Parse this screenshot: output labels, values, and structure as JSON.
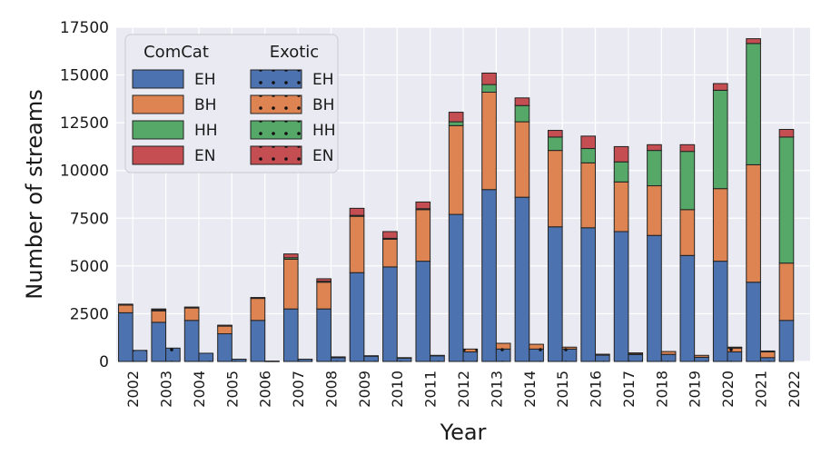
{
  "chart_data": {
    "type": "bar",
    "title": "",
    "xlabel": "Year",
    "ylabel": "Number of streams",
    "ylim": [
      0,
      17500
    ],
    "yticks": [
      0,
      2500,
      5000,
      7500,
      10000,
      12500,
      15000,
      17500
    ],
    "ytick_labels": [
      "0",
      "2500",
      "5000",
      "7500",
      "10000",
      "12500",
      "15000",
      "17500"
    ],
    "grid": true,
    "stacked": true,
    "categories": [
      "2002",
      "2003",
      "2004",
      "2005",
      "2006",
      "2007",
      "2008",
      "2009",
      "2010",
      "2011",
      "2012",
      "2013",
      "2014",
      "2015",
      "2016",
      "2017",
      "2018",
      "2019",
      "2020",
      "2021",
      "2022"
    ],
    "groups": [
      {
        "name": "ComCat",
        "series": [
          {
            "name": "EH",
            "color": "#4c72b0",
            "values": [
              2550,
              2050,
              2150,
              1450,
              2150,
              2750,
              2750,
              4650,
              4950,
              5250,
              7700,
              9000,
              8600,
              7050,
              7000,
              6800,
              6600,
              5550,
              5250,
              4150,
              2150
            ]
          },
          {
            "name": "BH",
            "color": "#dd8452",
            "values": [
              400,
              600,
              650,
              400,
              1150,
              2600,
              1400,
              2950,
              1450,
              2700,
              4650,
              5100,
              3950,
              4000,
              3400,
              2600,
              2600,
              2400,
              3800,
              6150,
              3000
            ]
          },
          {
            "name": "HH",
            "color": "#55a868",
            "values": [
              0,
              50,
              0,
              0,
              0,
              80,
              50,
              50,
              50,
              50,
              200,
              400,
              850,
              700,
              750,
              1050,
              1850,
              3050,
              5150,
              6350,
              6600
            ]
          },
          {
            "name": "EN",
            "color": "#c44e52",
            "values": [
              50,
              50,
              50,
              50,
              50,
              200,
              130,
              370,
              350,
              350,
              500,
              600,
              400,
              350,
              650,
              800,
              300,
              350,
              350,
              250,
              400
            ]
          }
        ]
      },
      {
        "name": "Exotic",
        "series": [
          {
            "name": "EH",
            "color": "#4c72b0",
            "values": [
              580,
              700,
              430,
              120,
              20,
              120,
              200,
              280,
              180,
              300,
              500,
              650,
              650,
              650,
              330,
              360,
              370,
              220,
              500,
              200,
              0
            ]
          },
          {
            "name": "BH",
            "color": "#dd8452",
            "values": [
              0,
              0,
              0,
              0,
              0,
              0,
              40,
              20,
              20,
              20,
              150,
              300,
              250,
              100,
              50,
              60,
              150,
              100,
              200,
              300,
              0
            ]
          },
          {
            "name": "HH",
            "color": "#55a868",
            "values": [
              0,
              0,
              0,
              0,
              0,
              0,
              0,
              0,
              0,
              0,
              0,
              0,
              0,
              0,
              0,
              0,
              0,
              0,
              50,
              50,
              0
            ]
          },
          {
            "name": "EN",
            "color": "#c44e52",
            "values": [
              0,
              0,
              0,
              0,
              0,
              0,
              0,
              0,
              0,
              0,
              0,
              0,
              0,
              0,
              0,
              30,
              0,
              0,
              0,
              0,
              0
            ]
          }
        ]
      }
    ],
    "legend": {
      "position": "top-left",
      "columns": [
        {
          "title": "ComCat",
          "labels": [
            "EH",
            "BH",
            "HH",
            "EN"
          ]
        },
        {
          "title": "Exotic",
          "labels": [
            "EH",
            "BH",
            "HH",
            "EN"
          ]
        }
      ]
    },
    "colors": {
      "background": "#eaeaf2",
      "grid": "#ffffff",
      "edge": "#222222",
      "legend_bg": "#eaeaf2"
    }
  }
}
